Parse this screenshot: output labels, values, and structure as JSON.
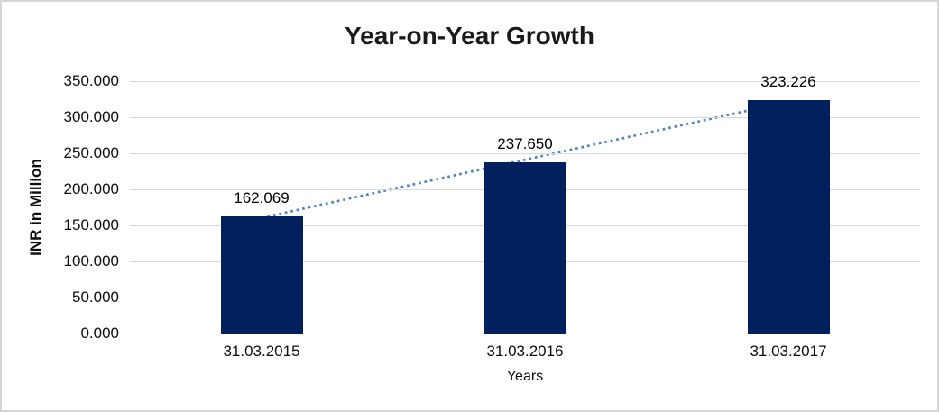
{
  "chart_data": {
    "type": "bar",
    "title": "Year-on-Year Growth",
    "categories": [
      "31.03.2015",
      "31.03.2016",
      "31.03.2017"
    ],
    "values": [
      162.069,
      237.65,
      323.226
    ],
    "data_labels": [
      "162.069",
      "237.650",
      "323.226"
    ],
    "xlabel": "Years",
    "ylabel": "INR in Million",
    "ylim": [
      0,
      350
    ],
    "ytick_step": 50,
    "ytick_labels": [
      "0.000",
      "50.000",
      "100.000",
      "150.000",
      "200.000",
      "250.000",
      "300.000",
      "350.000"
    ],
    "grid": true,
    "legend": "none",
    "bar_color": "#01205c",
    "gridline_color": "#d9d9d9",
    "trendline": {
      "type": "linear",
      "style": "dotted",
      "color": "#4e82c4"
    }
  }
}
